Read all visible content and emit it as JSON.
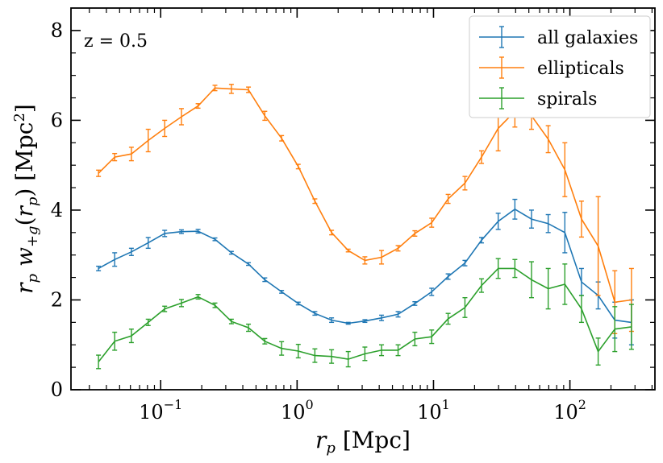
{
  "chart_data": {
    "type": "line",
    "annotation": "z = 0.5",
    "xlabel": "r_p [Mpc]",
    "ylabel": "r_p w_{+g}(r_p) [Mpc^2]",
    "xscale": "log",
    "xlim": [
      0.022,
      420
    ],
    "ylim": [
      0,
      8.5
    ],
    "legend_position": "top-right",
    "y_ticks": [
      "0",
      "2",
      "4",
      "6",
      "8"
    ],
    "x_ticks": [
      {
        "base": "10",
        "exp": "−1",
        "value": 0.1
      },
      {
        "base": "10",
        "exp": "0",
        "value": 1
      },
      {
        "base": "10",
        "exp": "1",
        "value": 10
      },
      {
        "base": "10",
        "exp": "2",
        "value": 100
      }
    ],
    "x": [
      0.035,
      0.046,
      0.061,
      0.081,
      0.107,
      0.142,
      0.188,
      0.25,
      0.33,
      0.44,
      0.58,
      0.77,
      1.02,
      1.35,
      1.79,
      2.37,
      3.14,
      4.16,
      5.5,
      7.3,
      9.7,
      12.8,
      17.0,
      22.5,
      29.8,
      39.5,
      52.3,
      69.3,
      91.8,
      121.6,
      161.1,
      213.4,
      282.7
    ],
    "series": [
      {
        "name": "all galaxies",
        "color": "#1f77b4",
        "values": [
          2.7,
          2.9,
          3.07,
          3.27,
          3.48,
          3.52,
          3.53,
          3.35,
          3.05,
          2.8,
          2.45,
          2.18,
          1.92,
          1.7,
          1.55,
          1.48,
          1.53,
          1.6,
          1.68,
          1.92,
          2.18,
          2.52,
          2.82,
          3.33,
          3.75,
          4.02,
          3.8,
          3.7,
          3.5,
          2.4,
          2.1,
          1.55,
          1.5
        ],
        "errors": [
          0.05,
          0.15,
          0.08,
          0.12,
          0.07,
          0.04,
          0.04,
          0.03,
          0.03,
          0.03,
          0.04,
          0.03,
          0.03,
          0.04,
          0.05,
          0.02,
          0.03,
          0.06,
          0.06,
          0.04,
          0.08,
          0.06,
          0.06,
          0.06,
          0.18,
          0.22,
          0.2,
          0.2,
          0.45,
          0.3,
          0.3,
          0.4,
          0.5
        ]
      },
      {
        "name": "ellipticals",
        "color": "#ff7f0e",
        "values": [
          4.82,
          5.18,
          5.25,
          5.55,
          5.82,
          6.08,
          6.32,
          6.72,
          6.7,
          6.68,
          6.1,
          5.6,
          4.97,
          4.2,
          3.5,
          3.1,
          2.88,
          2.95,
          3.15,
          3.48,
          3.72,
          4.25,
          4.6,
          5.18,
          5.82,
          6.2,
          6.1,
          5.58,
          4.9,
          3.8,
          3.2,
          1.95,
          2.0
        ],
        "errors": [
          0.07,
          0.08,
          0.15,
          0.25,
          0.18,
          0.18,
          0.05,
          0.06,
          0.1,
          0.06,
          0.1,
          0.06,
          0.05,
          0.05,
          0.05,
          0.03,
          0.08,
          0.15,
          0.06,
          0.06,
          0.1,
          0.1,
          0.15,
          0.14,
          0.5,
          0.35,
          0.3,
          0.3,
          0.6,
          0.4,
          1.1,
          0.7,
          0.7
        ]
      },
      {
        "name": "spirals",
        "color": "#2ca02c",
        "values": [
          0.62,
          1.08,
          1.2,
          1.5,
          1.8,
          1.93,
          2.07,
          1.88,
          1.52,
          1.38,
          1.08,
          0.92,
          0.86,
          0.76,
          0.74,
          0.68,
          0.8,
          0.88,
          0.88,
          1.13,
          1.18,
          1.58,
          1.83,
          2.32,
          2.7,
          2.7,
          2.45,
          2.25,
          2.35,
          1.8,
          0.85,
          1.35,
          1.4
        ],
        "errors": [
          0.15,
          0.2,
          0.15,
          0.07,
          0.06,
          0.08,
          0.05,
          0.05,
          0.05,
          0.08,
          0.06,
          0.15,
          0.15,
          0.15,
          0.15,
          0.17,
          0.15,
          0.12,
          0.12,
          0.15,
          0.15,
          0.12,
          0.22,
          0.15,
          0.22,
          0.2,
          0.4,
          0.45,
          0.45,
          0.3,
          0.3,
          0.5,
          0.5
        ]
      }
    ]
  }
}
